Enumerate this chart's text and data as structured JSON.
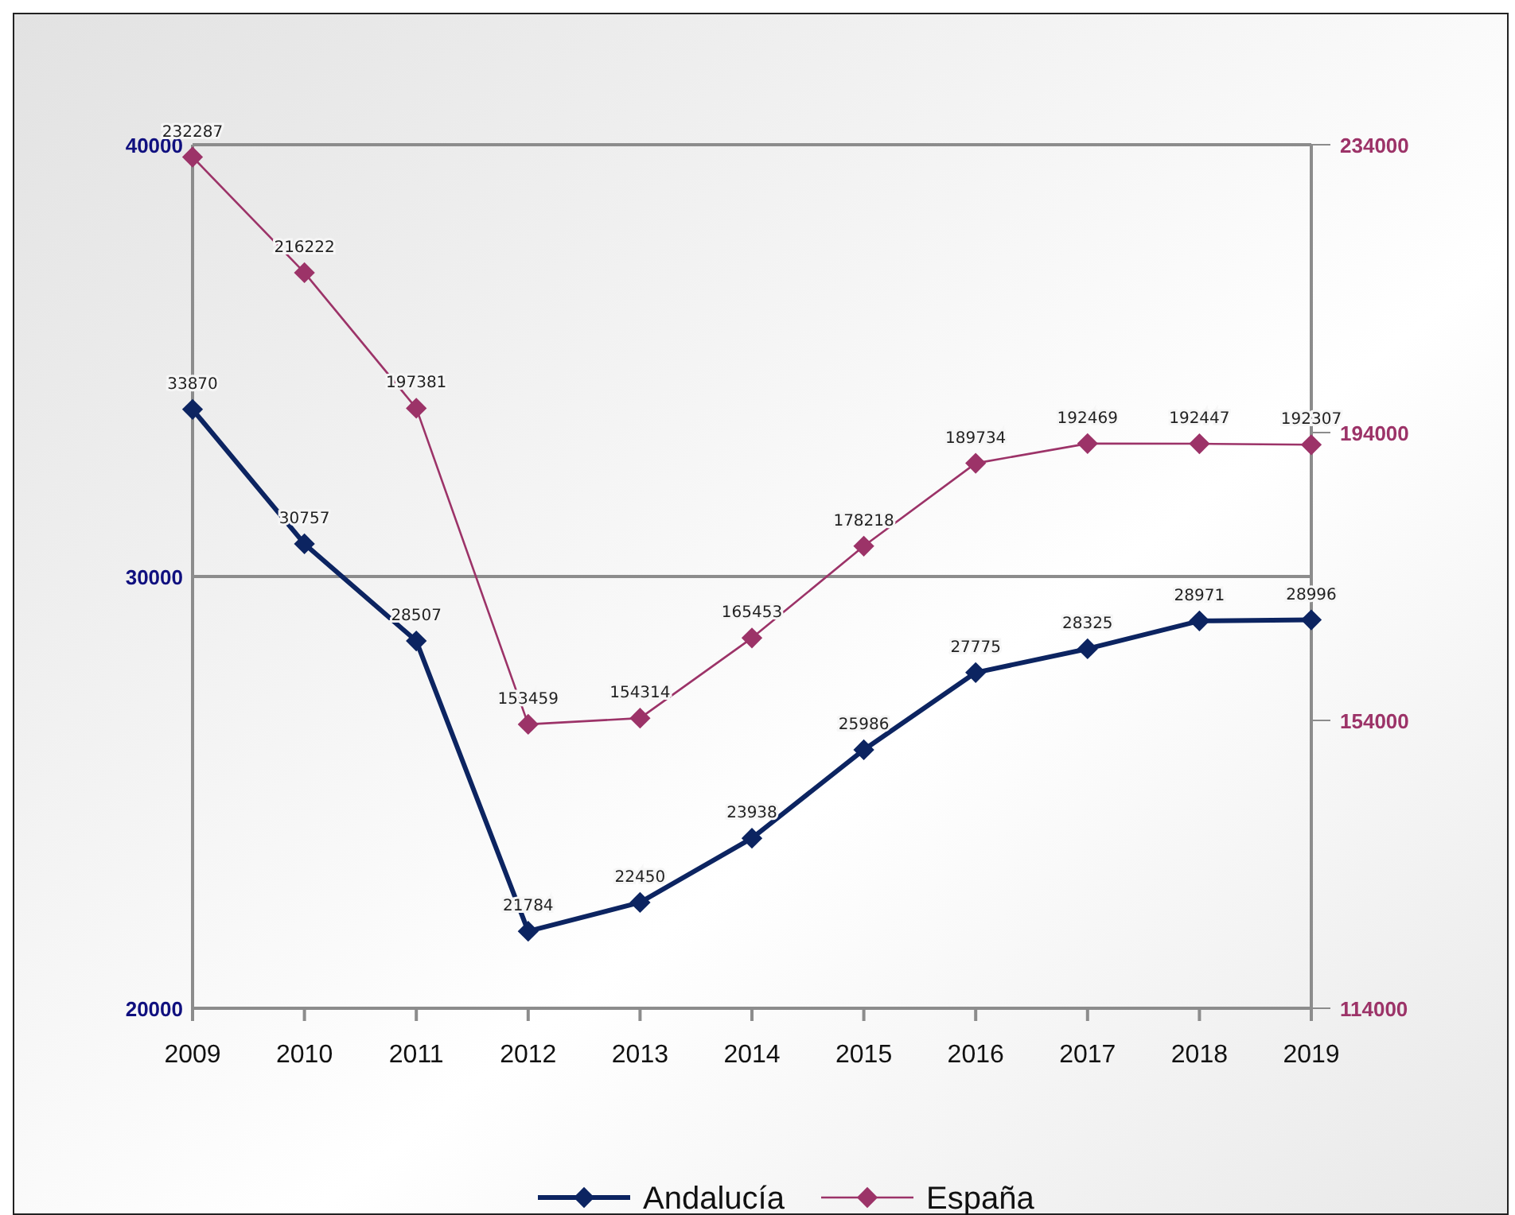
{
  "chart_data": {
    "type": "line",
    "categories": [
      "2009",
      "2010",
      "2011",
      "2012",
      "2013",
      "2014",
      "2015",
      "2016",
      "2017",
      "2018",
      "2019"
    ],
    "series": [
      {
        "name": "Andalucía",
        "color": "#0c2461",
        "values": [
          33870,
          30757,
          28507,
          21784,
          22450,
          23938,
          25986,
          27775,
          28325,
          28971,
          28996
        ]
      },
      {
        "name": "España",
        "color": "#9c3368",
        "axis": "y2",
        "values": [
          232287,
          216222,
          197381,
          153459,
          154314,
          165453,
          178218,
          189734,
          192469,
          192447,
          192307
        ]
      }
    ],
    "ylim": [
      20000,
      40000
    ],
    "yticks": [
      20000,
      30000,
      40000
    ],
    "y2lim": [
      114000,
      234000
    ],
    "y2ticks": [
      114000,
      154000,
      194000,
      234000
    ],
    "grid": "y",
    "legend": "bottom",
    "marker": "diamond",
    "data_labels": true
  }
}
